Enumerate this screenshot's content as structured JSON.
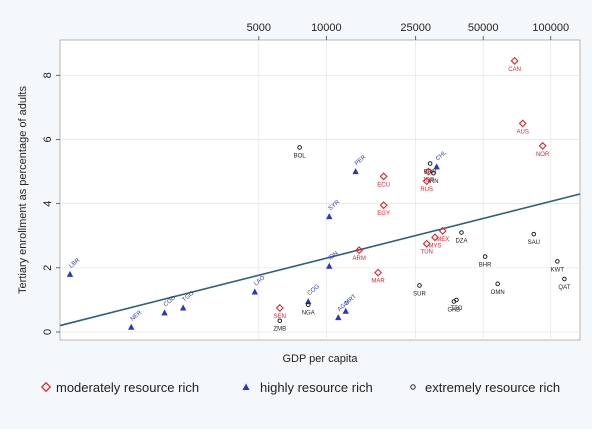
{
  "chart_data": {
    "type": "scatter",
    "title": "",
    "xlabel": "GDP per capita",
    "ylabel": "Tertiary enrollment as percentage of adults",
    "x_scale": "log",
    "xlim": [
      650,
      135000
    ],
    "ylim": [
      -0.25,
      9.1
    ],
    "x_ticks": [
      5000,
      10000,
      25000,
      50000,
      100000
    ],
    "x_tick_labels": [
      "5000",
      "10000",
      "25000",
      "50000",
      "100000"
    ],
    "y_ticks": [
      0,
      2,
      4,
      6,
      8
    ],
    "y_tick_labels": [
      "0",
      "2",
      "4",
      "6",
      "8"
    ],
    "grid": true,
    "legend_position": "bottom",
    "colors": {
      "moderate": "#e8202a",
      "high": "#2b35c8",
      "extreme": "#222222",
      "fit_line": "#2c5f7c",
      "plot_bg": "#ffffff",
      "page_bg": "#f5f8fb"
    },
    "fit_line": {
      "x": [
        650,
        135000
      ],
      "y": [
        0.2,
        4.3
      ]
    },
    "series": [
      {
        "name": "moderately resource rich",
        "marker": "diamond",
        "points": [
          {
            "label": "CAN",
            "x": 69000,
            "y": 8.45
          },
          {
            "label": "AUS",
            "x": 75000,
            "y": 6.5
          },
          {
            "label": "NOR",
            "x": 92000,
            "y": 5.8
          },
          {
            "label": "ECU",
            "x": 18000,
            "y": 4.85
          },
          {
            "label": "EGY",
            "x": 18000,
            "y": 3.95
          },
          {
            "label": "RUS",
            "x": 28000,
            "y": 4.7
          },
          {
            "label": "JOR",
            "x": 28500,
            "y": 5.0
          },
          {
            "label": "MEX",
            "x": 33000,
            "y": 3.15
          },
          {
            "label": "MYS",
            "x": 30500,
            "y": 2.95
          },
          {
            "label": "TUN",
            "x": 28000,
            "y": 2.75
          },
          {
            "label": "ARM",
            "x": 14000,
            "y": 2.55
          },
          {
            "label": "MAR",
            "x": 17000,
            "y": 1.85
          },
          {
            "label": "SEN",
            "x": 6200,
            "y": 0.75
          }
        ]
      },
      {
        "name": "highly resource rich",
        "marker": "triangle",
        "points": [
          {
            "label": "PER",
            "x": 13500,
            "y": 5.0
          },
          {
            "label": "CHL",
            "x": 31000,
            "y": 5.15
          },
          {
            "label": "SYR",
            "x": 10300,
            "y": 3.6
          },
          {
            "label": "IDN",
            "x": 10300,
            "y": 2.05
          },
          {
            "label": "LBR",
            "x": 720,
            "y": 1.8
          },
          {
            "label": "LAO",
            "x": 4800,
            "y": 1.25
          },
          {
            "label": "COG",
            "x": 8300,
            "y": 0.95
          },
          {
            "label": "TGO",
            "x": 2300,
            "y": 0.75
          },
          {
            "label": "COD",
            "x": 1900,
            "y": 0.6
          },
          {
            "label": "MRT",
            "x": 12200,
            "y": 0.65
          },
          {
            "label": "AGO",
            "x": 11300,
            "y": 0.45
          },
          {
            "label": "NER",
            "x": 1350,
            "y": 0.15
          }
        ]
      },
      {
        "name": "extremely resource rich",
        "marker": "circle",
        "points": [
          {
            "label": "BOL",
            "x": 7600,
            "y": 5.75
          },
          {
            "label": "BRN",
            "x": 29000,
            "y": 5.25
          },
          {
            "label": "IRN",
            "x": 30000,
            "y": 4.95
          },
          {
            "label": "DZA",
            "x": 40000,
            "y": 3.1
          },
          {
            "label": "SAU",
            "x": 84000,
            "y": 3.05
          },
          {
            "label": "BHR",
            "x": 51000,
            "y": 2.35
          },
          {
            "label": "KWT",
            "x": 107000,
            "y": 2.2
          },
          {
            "label": "QAT",
            "x": 115000,
            "y": 1.65
          },
          {
            "label": "OMN",
            "x": 58000,
            "y": 1.5
          },
          {
            "label": "SUR",
            "x": 26000,
            "y": 1.45
          },
          {
            "label": "GAB",
            "x": 37000,
            "y": 0.95
          },
          {
            "label": "TTO",
            "x": 38000,
            "y": 1.0
          },
          {
            "label": "NGA",
            "x": 8300,
            "y": 0.85
          },
          {
            "label": "ZMB",
            "x": 6200,
            "y": 0.35
          }
        ]
      }
    ]
  }
}
